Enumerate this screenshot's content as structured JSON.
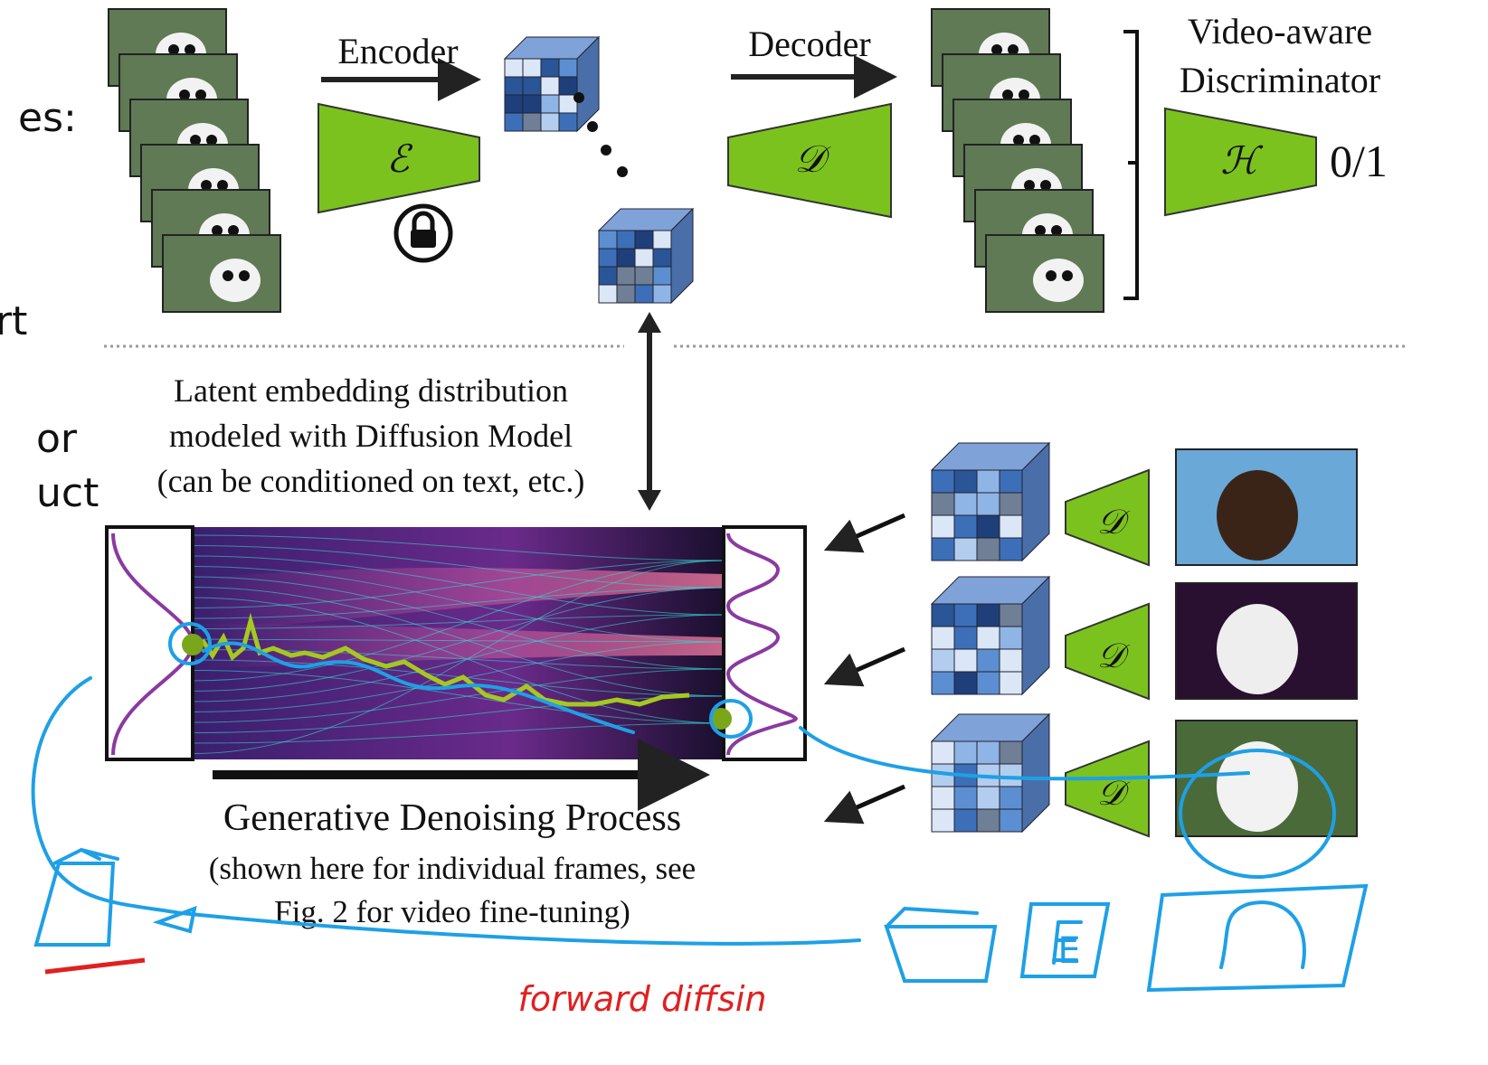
{
  "side_text": [
    "es:",
    "rt",
    "or",
    "uct"
  ],
  "autoencoder": {
    "encoder_label": "Encoder",
    "encoder_symbol": "ℰ",
    "decoder_label": "Decoder",
    "decoder_symbol": "𝒟",
    "discriminator_label": [
      "Video-aware",
      "Discriminator"
    ],
    "discriminator_symbol": "ℋ",
    "discriminator_output": "0/1"
  },
  "latent_caption": [
    "Latent embedding distribution",
    "modeled with Diffusion Model",
    "(can be conditioned on text, etc.)"
  ],
  "process": {
    "title": "Generative Denoising Process",
    "caption": [
      "(shown here for individual frames, see",
      "Fig. 2 for video fine-tuning)"
    ]
  },
  "annotations": {
    "handwritten": "forward diffsin",
    "sketch_label": "E"
  }
}
